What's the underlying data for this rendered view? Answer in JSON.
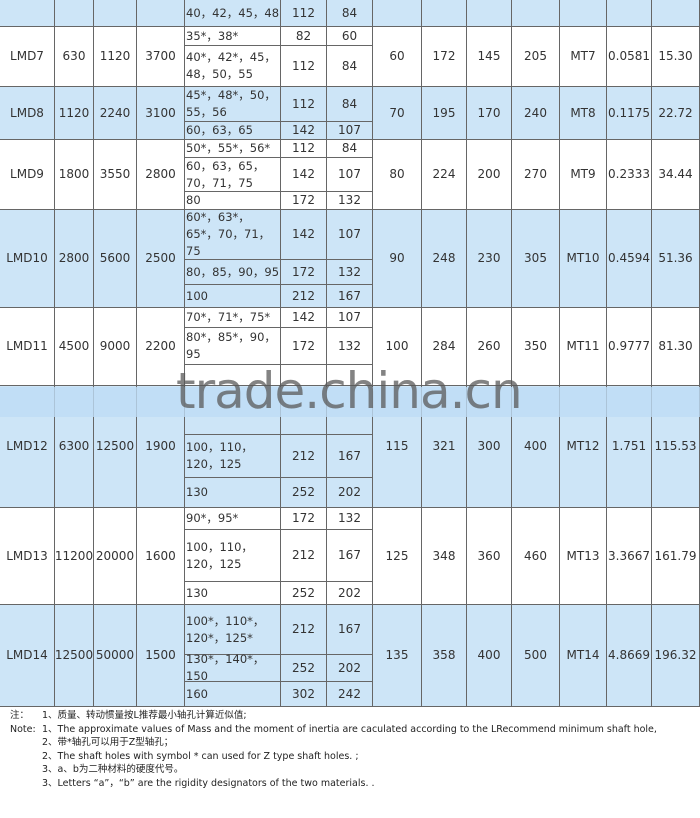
{
  "table": {
    "groups": [
      {
        "bores": [
          [
            "40，42，45，48",
            "112",
            "84"
          ]
        ]
      },
      {
        "left": [
          "LMD7",
          "630",
          "1120",
          "3700"
        ],
        "bores": [
          [
            "35*，38*",
            "82",
            "60"
          ],
          [
            "40*，42*，45，48，50，55",
            "112",
            "84"
          ]
        ],
        "right": [
          "60",
          "172",
          "145",
          "205",
          "MT7",
          "0.0581",
          "15.30"
        ]
      },
      {
        "left": [
          "LMD8",
          "1120",
          "2240",
          "3100"
        ],
        "bores": [
          [
            "45*，48*，50，55，56",
            "112",
            "84"
          ],
          [
            "60，63，65",
            "142",
            "107"
          ]
        ],
        "right": [
          "70",
          "195",
          "170",
          "240",
          "MT8",
          "0.1175",
          "22.72"
        ]
      },
      {
        "left": [
          "LMD9",
          "1800",
          "3550",
          "2800"
        ],
        "bores": [
          [
            "50*，55*，56*",
            "112",
            "84"
          ],
          [
            "60，63，65，70，71，75",
            "142",
            "107"
          ],
          [
            "80",
            "172",
            "132"
          ]
        ],
        "right": [
          "80",
          "224",
          "200",
          "270",
          "MT9",
          "0.2333",
          "34.44"
        ]
      },
      {
        "left": [
          "LMD10",
          "2800",
          "5600",
          "2500"
        ],
        "bores": [
          [
            "60*，63*，65*，70，71，75",
            "142",
            "107"
          ],
          [
            "80，85，90，95",
            "172",
            "132"
          ],
          [
            "100",
            "212",
            "167"
          ]
        ],
        "right": [
          "90",
          "248",
          "230",
          "305",
          "MT10",
          "0.4594",
          "51.36"
        ]
      },
      {
        "left": [
          "LMD11",
          "4500",
          "9000",
          "2200"
        ],
        "bores": [
          [
            "70*，71*，75*",
            "142",
            "107"
          ],
          [
            "80*，85*，90，95",
            "172",
            "132"
          ]
        ],
        "right": [
          "100",
          "284",
          "260",
          "350",
          "MT11",
          "0.9777",
          "81.30"
        ]
      },
      {
        "left": [
          "LMD12",
          "6300",
          "12500",
          "1900"
        ],
        "bores": [
          [
            "100，110，120，125",
            "212",
            "167"
          ],
          [
            "130",
            "252",
            "202"
          ]
        ],
        "right": [
          "115",
          "321",
          "300",
          "400",
          "MT12",
          "1.751",
          "115.53"
        ]
      },
      {
        "left": [
          "LMD13",
          "11200",
          "20000",
          "1600"
        ],
        "bores": [
          [
            "90*，95*",
            "172",
            "132"
          ],
          [
            "100，110，120，125",
            "212",
            "167"
          ],
          [
            "130",
            "252",
            "202"
          ]
        ],
        "right": [
          "125",
          "348",
          "360",
          "460",
          "MT13",
          "3.3667",
          "161.79"
        ]
      },
      {
        "left": [
          "LMD14",
          "12500",
          "50000",
          "1500"
        ],
        "bores": [
          [
            "100*，110*，120*，125*",
            "212",
            "167"
          ],
          [
            "130*，140*，150",
            "252",
            "202"
          ],
          [
            "160",
            "302",
            "242"
          ]
        ],
        "right": [
          "135",
          "358",
          "400",
          "500",
          "MT14",
          "4.8669",
          "196.32"
        ]
      }
    ]
  },
  "notes": [
    {
      "label": "注：",
      "text": "1、质量、转动惯量按L推荐最小轴孔计算近似值;"
    },
    {
      "label": "Note:",
      "text": "1、The approximate values of Mass and the moment of inertia are caculated according to the LRecommend minimum shaft hole,"
    },
    {
      "text": "2、带*轴孔可以用于Z型轴孔；"
    },
    {
      "text": "2、The shaft holes with symbol * can used for Z type shaft holes. ;"
    },
    {
      "text": "3、a、b为二种材料的硬度代号。"
    },
    {
      "text": "3、Letters “a”，“b” are the rigidity designators of the two materials. ."
    }
  ],
  "watermark": "trade.china.cn"
}
